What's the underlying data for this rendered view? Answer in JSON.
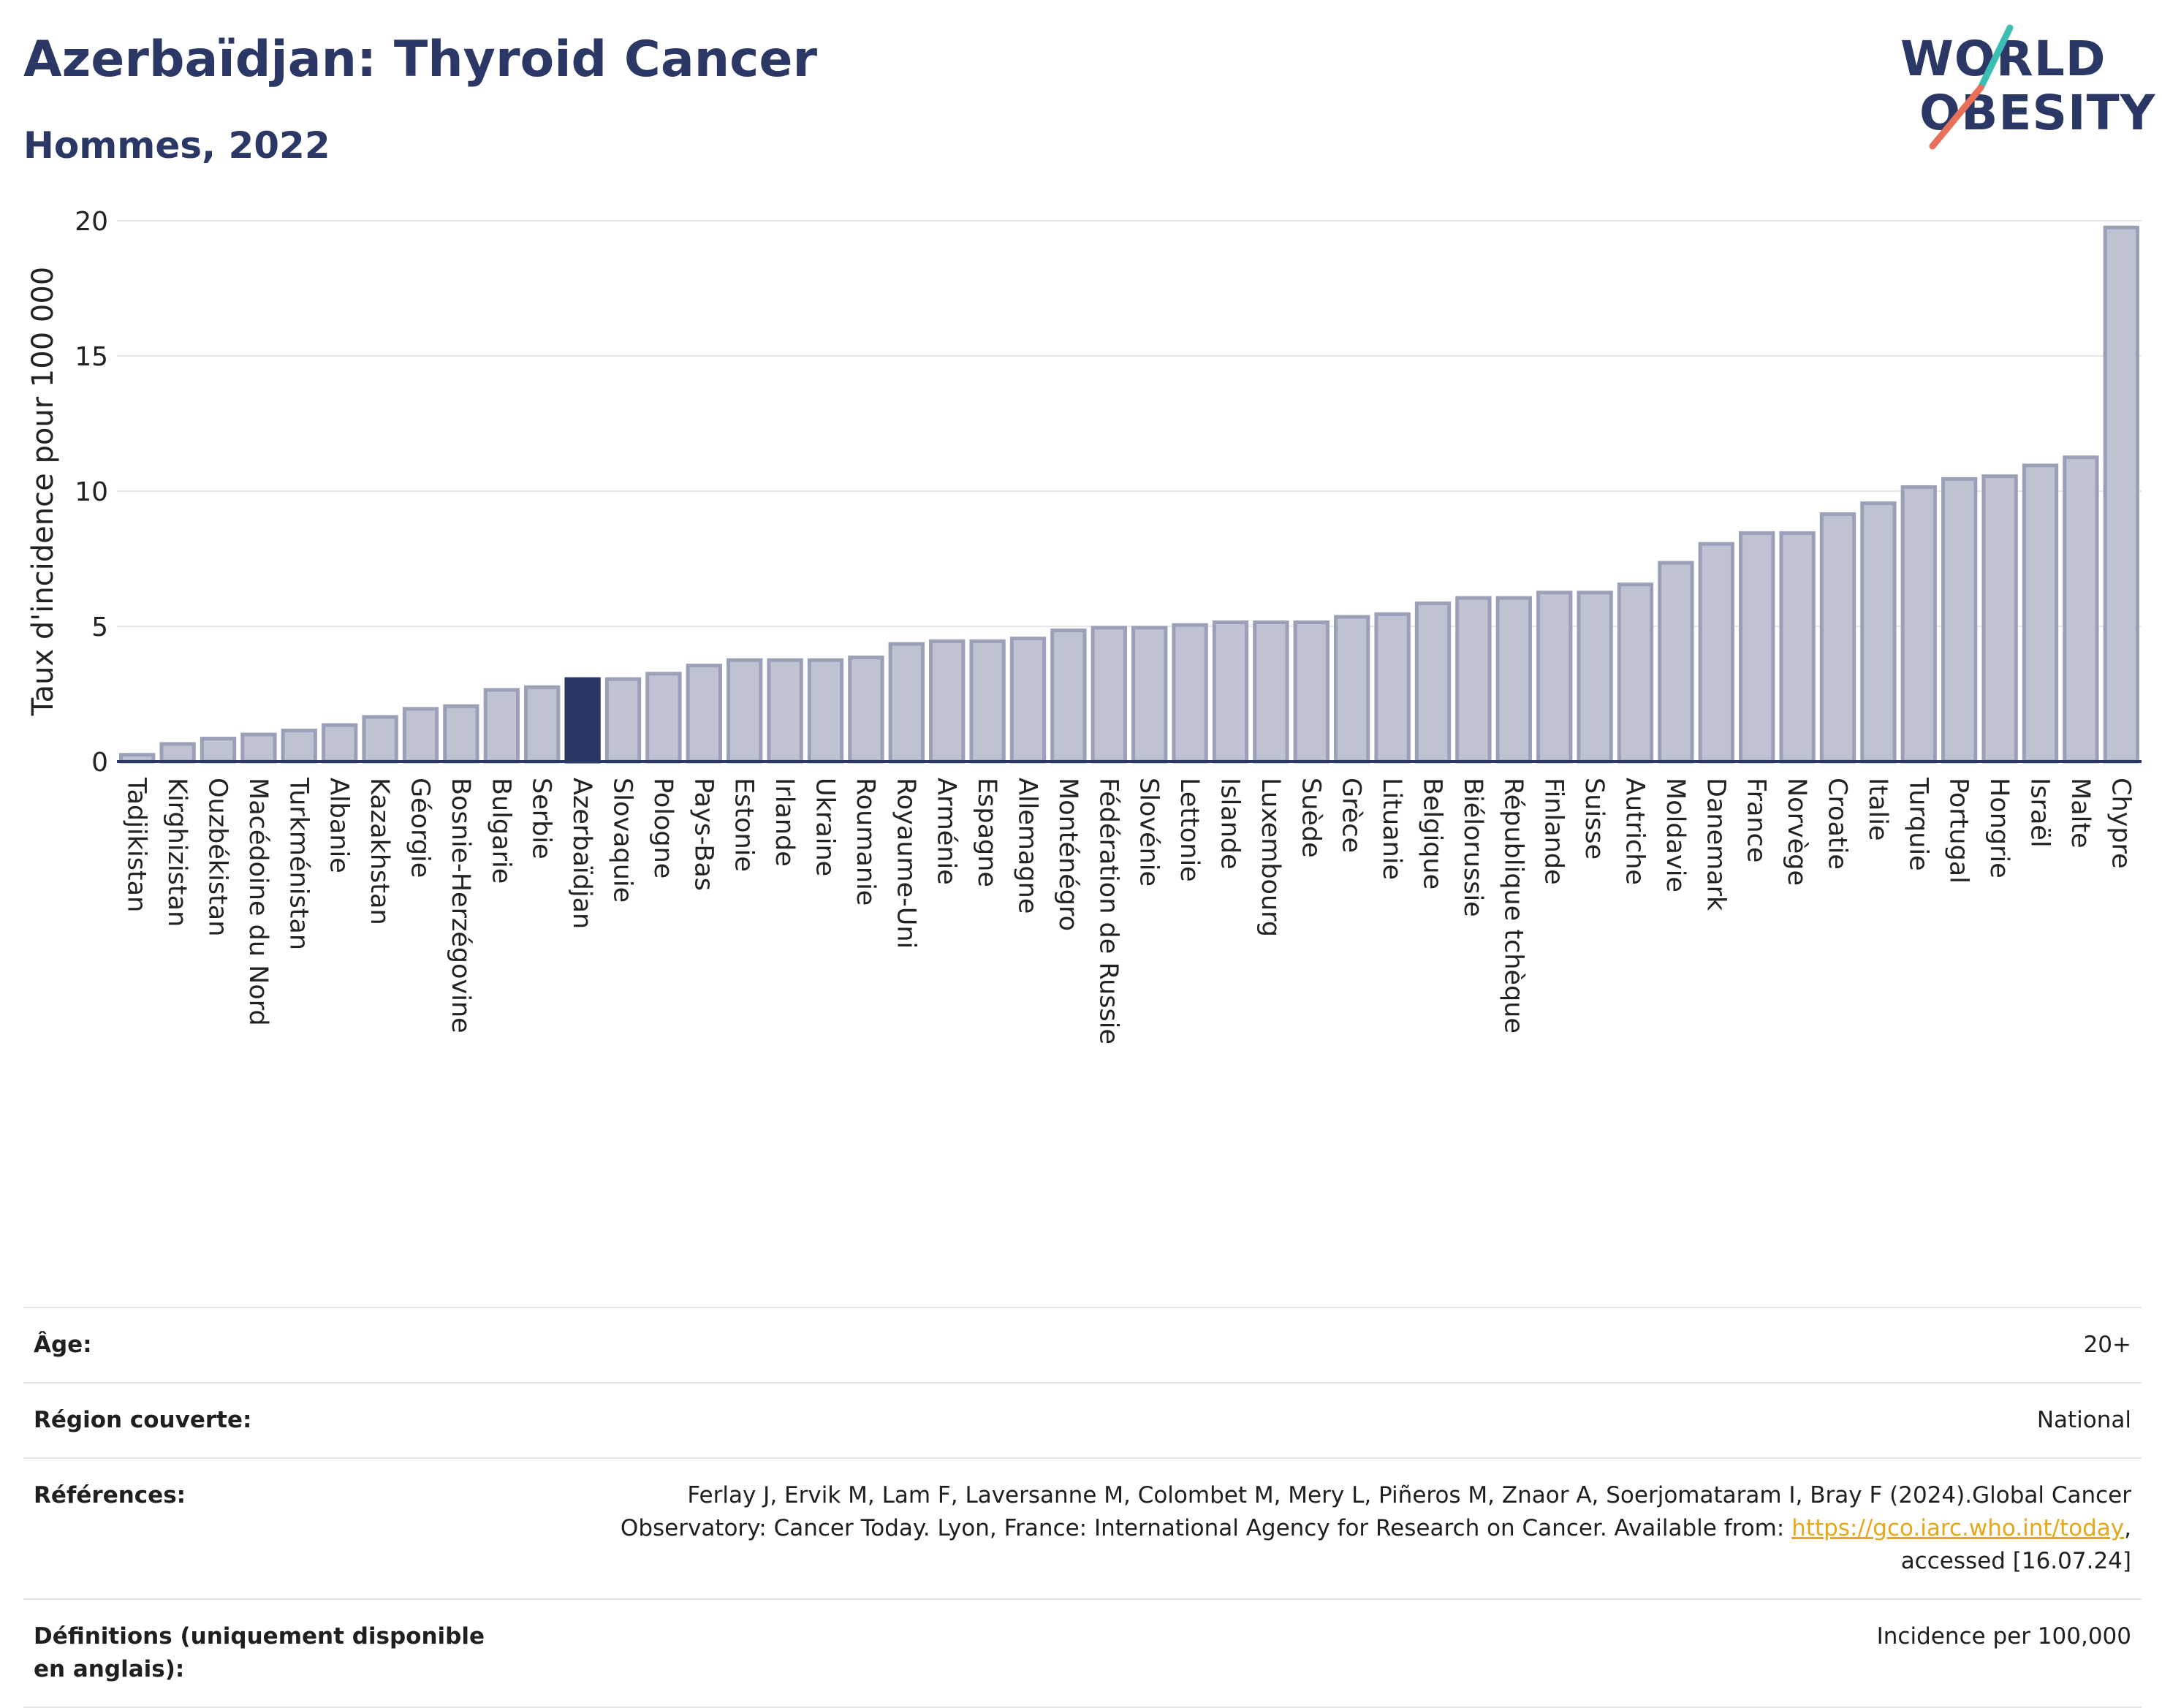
{
  "header": {
    "title": "Azerbaïdjan: Thyroid Cancer",
    "subtitle": "Hommes, 2022"
  },
  "logo": {
    "line1": "WORLD",
    "line2": "OBESITY",
    "colors": {
      "text": "#2b3765",
      "slash_top": "#3bbfb2",
      "slash_bottom": "#e8705a"
    }
  },
  "colors": {
    "bar_fill": "#bfc3d1",
    "bar_stroke": "#9aa0b8",
    "highlight": "#2b3765",
    "grid": "#e6e6e6",
    "axis": "#2b3765"
  },
  "chart_data": {
    "type": "bar",
    "title": "",
    "xlabel": "",
    "ylabel": "Taux d'incidence pour 100 000",
    "ylim": [
      0,
      20
    ],
    "yticks": [
      0,
      5,
      10,
      15,
      20
    ],
    "grid": true,
    "highlight": "Azerbaïdjan",
    "categories": [
      "Tadjikistan",
      "Kirghizistan",
      "Ouzbékistan",
      "Macédoine du Nord",
      "Turkménistan",
      "Albanie",
      "Kazakhstan",
      "Géorgie",
      "Bosnie-Herzégovine",
      "Bulgarie",
      "Serbie",
      "Azerbaïdjan",
      "Slovaquie",
      "Pologne",
      "Pays-Bas",
      "Estonie",
      "Irlande",
      "Ukraine",
      "Roumanie",
      "Royaume-Uni",
      "Arménie",
      "Espagne",
      "Allemagne",
      "Monténégro",
      "Fédération de Russie",
      "Slovénie",
      "Lettonie",
      "Islande",
      "Luxembourg",
      "Suède",
      "Grèce",
      "Lituanie",
      "Belgique",
      "Biélorussie",
      "République tchèque",
      "Finlande",
      "Suisse",
      "Autriche",
      "Moldavie",
      "Danemark",
      "France",
      "Norvège",
      "Croatie",
      "Italie",
      "Turquie",
      "Portugal",
      "Hongrie",
      "Israël",
      "Malte",
      "Chypre"
    ],
    "values": [
      0.25,
      0.65,
      0.85,
      1.0,
      1.15,
      1.35,
      1.65,
      1.95,
      2.05,
      2.65,
      2.75,
      3.05,
      3.05,
      3.25,
      3.55,
      3.75,
      3.75,
      3.75,
      3.85,
      4.35,
      4.45,
      4.45,
      4.55,
      4.85,
      4.95,
      4.95,
      5.05,
      5.15,
      5.15,
      5.15,
      5.35,
      5.45,
      5.85,
      6.05,
      6.05,
      6.25,
      6.25,
      6.55,
      7.35,
      8.05,
      8.45,
      8.45,
      9.15,
      9.55,
      10.15,
      10.45,
      10.55,
      10.95,
      11.25,
      19.75
    ]
  },
  "meta": {
    "rows": [
      {
        "label": "Âge:",
        "value": "20+"
      },
      {
        "label": "Région couverte:",
        "value": "National"
      },
      {
        "label": "Références:",
        "value_line1": "Ferlay J, Ervik M, Lam F, Laversanne M, Colombet M, Mery L, Piñeros M, Znaor A, Soerjomataram I, Bray F (2024).Global Cancer",
        "value_line2": "Observatory: Cancer Today. Lyon, France: International Agency for Research on Cancer. Available from: ",
        "link": "https://gco.iarc.who.int/today",
        "value_line2_end": ",",
        "value_line3": "accessed [16.07.24]"
      },
      {
        "label": "Définitions (uniquement disponible en anglais):",
        "value": "Incidence per 100,000"
      }
    ]
  }
}
